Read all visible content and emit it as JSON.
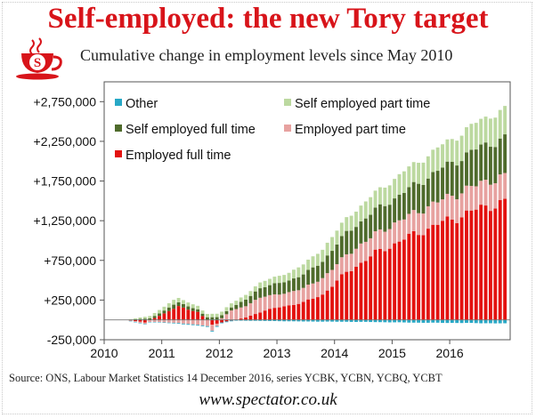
{
  "header": {
    "title": "Self-employed: the new Tory target",
    "subtitle": "Cumulative change in employment levels since May 2010"
  },
  "footer": {
    "source": "Source: ONS, Labour Market Statistics 14 December 2016, series YCBK, YCBN, YCBQ, YCBT",
    "website": "www.spectator.co.uk"
  },
  "logo": {
    "letter": "S",
    "icon": "spectator-teacup-icon"
  },
  "colors": {
    "title": "#d8141a",
    "employed_full_time": "#e3120f",
    "employed_part_time": "#e7a2a0",
    "self_employed_full_time": "#4f6b2c",
    "self_employed_part_time": "#bcd9a0",
    "other": "#27a8c6"
  },
  "chart_data": {
    "type": "bar",
    "stacked": true,
    "ylim": [
      -250000,
      3000000
    ],
    "yticks": [
      -250000,
      250000,
      750000,
      1250000,
      1750000,
      2250000,
      2750000
    ],
    "ytick_labels": [
      "-250,000",
      "+250,000",
      "+750,000",
      "+1,250,000",
      "+1,750,000",
      "+2,250,000",
      "+2,750,000"
    ],
    "xticks": [
      "2010",
      "2011",
      "2012",
      "2013",
      "2014",
      "2015",
      "2016"
    ],
    "start": "2010-05",
    "legend_placement": "top, inside plot",
    "legend": [
      "Other",
      "Self employed part time",
      "Self employed full time",
      "Employed part time",
      "Employed full time"
    ],
    "series": [
      {
        "name": "Employed full time",
        "key": "employed_full_time",
        "anchors": [
          [
            "2010-05",
            0
          ],
          [
            "2010-09",
            -30000
          ],
          [
            "2011-01",
            80000
          ],
          [
            "2011-04",
            170000
          ],
          [
            "2011-08",
            100000
          ],
          [
            "2011-11",
            -60000
          ],
          [
            "2012-02",
            -20000
          ],
          [
            "2012-06",
            30000
          ],
          [
            "2012-10",
            120000
          ],
          [
            "2013-01",
            160000
          ],
          [
            "2013-06",
            220000
          ],
          [
            "2013-10",
            320000
          ],
          [
            "2014-03",
            600000
          ],
          [
            "2014-09",
            840000
          ],
          [
            "2015-03",
            1020000
          ],
          [
            "2015-09",
            1180000
          ],
          [
            "2016-03",
            1320000
          ],
          [
            "2016-09",
            1450000
          ],
          [
            "2016-12",
            1480000
          ]
        ]
      },
      {
        "name": "Employed part time",
        "key": "employed_part_time",
        "anchors": [
          [
            "2010-05",
            0
          ],
          [
            "2010-09",
            -20000
          ],
          [
            "2011-01",
            -30000
          ],
          [
            "2011-06",
            -50000
          ],
          [
            "2011-11",
            -80000
          ],
          [
            "2012-03",
            120000
          ],
          [
            "2012-09",
            180000
          ],
          [
            "2013-03",
            160000
          ],
          [
            "2013-09",
            200000
          ],
          [
            "2014-03",
            220000
          ],
          [
            "2014-09",
            240000
          ],
          [
            "2015-03",
            260000
          ],
          [
            "2015-09",
            280000
          ],
          [
            "2016-03",
            300000
          ],
          [
            "2016-09",
            320000
          ],
          [
            "2016-12",
            320000
          ]
        ]
      },
      {
        "name": "Self employed full time",
        "key": "self_employed_full_time",
        "anchors": [
          [
            "2010-05",
            0
          ],
          [
            "2010-10",
            20000
          ],
          [
            "2011-03",
            50000
          ],
          [
            "2011-09",
            30000
          ],
          [
            "2012-03",
            40000
          ],
          [
            "2012-09",
            120000
          ],
          [
            "2013-03",
            150000
          ],
          [
            "2013-09",
            200000
          ],
          [
            "2014-03",
            280000
          ],
          [
            "2014-09",
            300000
          ],
          [
            "2015-03",
            330000
          ],
          [
            "2015-09",
            380000
          ],
          [
            "2016-03",
            430000
          ],
          [
            "2016-09",
            470000
          ],
          [
            "2016-12",
            480000
          ]
        ]
      },
      {
        "name": "Self employed part time",
        "key": "self_employed_part_time",
        "anchors": [
          [
            "2010-05",
            0
          ],
          [
            "2010-10",
            30000
          ],
          [
            "2011-03",
            60000
          ],
          [
            "2011-09",
            40000
          ],
          [
            "2012-03",
            50000
          ],
          [
            "2012-09",
            70000
          ],
          [
            "2013-03",
            100000
          ],
          [
            "2013-09",
            150000
          ],
          [
            "2014-03",
            180000
          ],
          [
            "2014-09",
            220000
          ],
          [
            "2015-03",
            260000
          ],
          [
            "2015-09",
            280000
          ],
          [
            "2016-03",
            310000
          ],
          [
            "2016-09",
            350000
          ],
          [
            "2016-12",
            360000
          ]
        ]
      },
      {
        "name": "Other",
        "key": "other",
        "anchors": [
          [
            "2010-05",
            0
          ],
          [
            "2011-06",
            -10000
          ],
          [
            "2012-06",
            -10000
          ],
          [
            "2013-06",
            -20000
          ],
          [
            "2014-06",
            -25000
          ],
          [
            "2015-06",
            -35000
          ],
          [
            "2016-06",
            -40000
          ],
          [
            "2016-12",
            -45000
          ]
        ]
      }
    ]
  }
}
